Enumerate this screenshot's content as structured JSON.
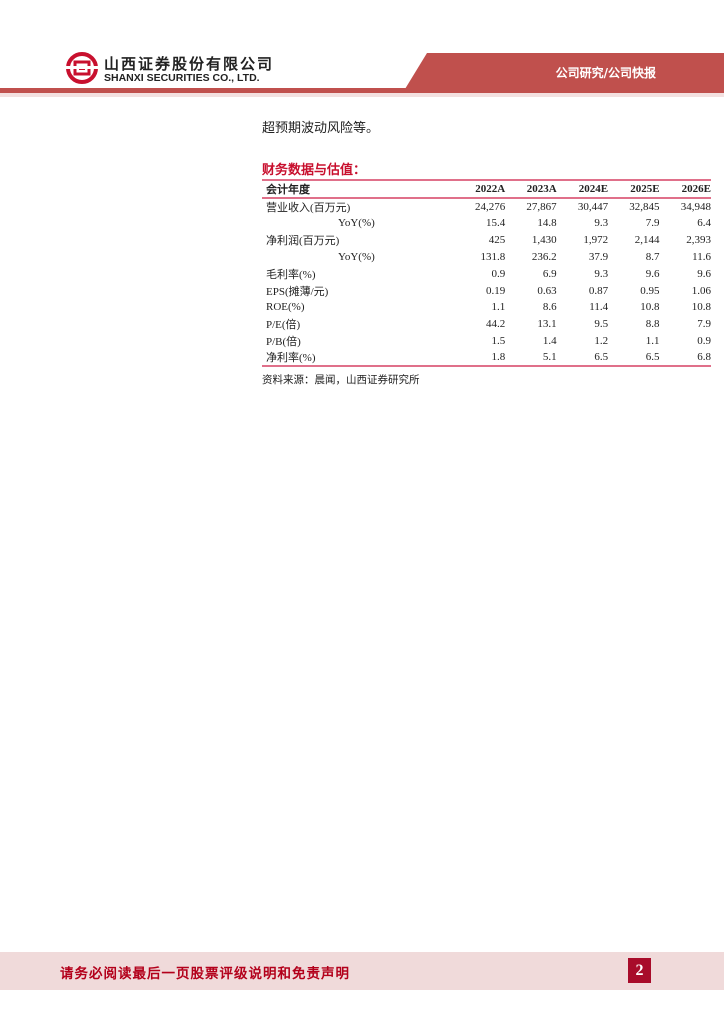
{
  "header": {
    "company_cn": "山西证券股份有限公司",
    "company_en": "SHANXI SECURITIES CO., LTD.",
    "section": "公司研究/公司快报",
    "brand_color": "#c0504d"
  },
  "intro_text": "超预期波动风险等。",
  "table": {
    "title": "财务数据与估值：",
    "columns": [
      "会计年度",
      "2022A",
      "2023A",
      "2024E",
      "2025E",
      "2026E"
    ],
    "rows": [
      {
        "label": "营业收入(百万元)",
        "values": [
          "24,276",
          "27,867",
          "30,447",
          "32,845",
          "34,948"
        ]
      },
      {
        "label": "YoY(%)",
        "values": [
          "15.4",
          "14.8",
          "9.3",
          "7.9",
          "6.4"
        ],
        "indent": true
      },
      {
        "label": "净利润(百万元)",
        "values": [
          "425",
          "1,430",
          "1,972",
          "2,144",
          "2,393"
        ]
      },
      {
        "label": "YoY(%)",
        "values": [
          "131.8",
          "236.2",
          "37.9",
          "8.7",
          "11.6"
        ],
        "indent": true
      },
      {
        "label": "毛利率(%)",
        "values": [
          "0.9",
          "6.9",
          "9.3",
          "9.6",
          "9.6"
        ]
      },
      {
        "label": "EPS(摊薄/元)",
        "values": [
          "0.19",
          "0.63",
          "0.87",
          "0.95",
          "1.06"
        ]
      },
      {
        "label": "ROE(%)",
        "values": [
          "1.1",
          "8.6",
          "11.4",
          "10.8",
          "10.8"
        ]
      },
      {
        "label": "P/E(倍)",
        "values": [
          "44.2",
          "13.1",
          "9.5",
          "8.8",
          "7.9"
        ]
      },
      {
        "label": "P/B(倍)",
        "values": [
          "1.5",
          "1.4",
          "1.2",
          "1.1",
          "0.9"
        ]
      },
      {
        "label": "净利率(%)",
        "values": [
          "1.8",
          "5.1",
          "6.5",
          "6.5",
          "6.8"
        ]
      }
    ],
    "source": "资料来源：晨闻，山西证券研究所"
  },
  "footer": {
    "disclaimer": "请务必阅读最后一页股票评级说明和免责声明",
    "page_number": "2"
  }
}
